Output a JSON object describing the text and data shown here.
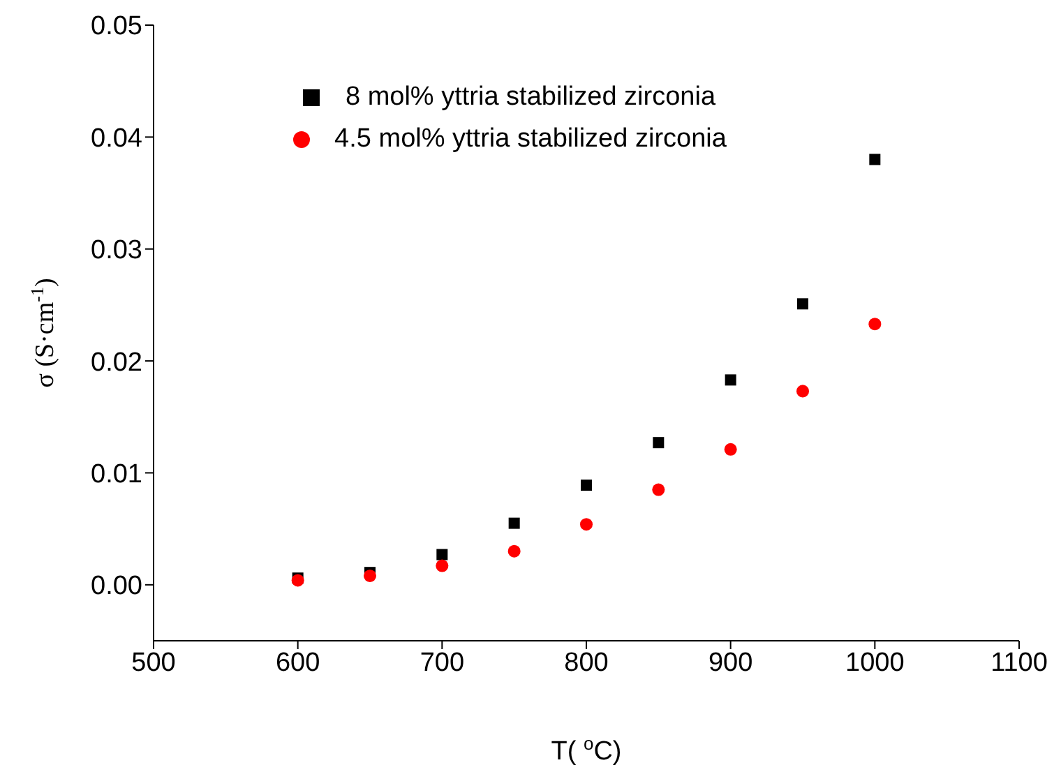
{
  "chart_data": {
    "type": "scatter",
    "xlabel": "T( $^{o}$C)",
    "ylabel": "σ (S·cm$^{-1}$)",
    "xlim": [
      500,
      1100
    ],
    "xticks": [
      500,
      600,
      700,
      800,
      900,
      1000,
      1100
    ],
    "ylim": [
      -0.005,
      0.05
    ],
    "yticks": [
      {
        "value": 0,
        "label": "0.00"
      },
      {
        "value": 0.01,
        "label": "0.01"
      },
      {
        "value": 0.02,
        "label": "0.02"
      },
      {
        "value": 0.03,
        "label": "0.03"
      },
      {
        "value": 0.04,
        "label": "0.04"
      },
      {
        "value": 0.05,
        "label": "0.05"
      }
    ],
    "x": [
      600,
      650,
      700,
      750,
      800,
      850,
      900,
      950,
      1000
    ],
    "legend": "top left",
    "grid": false,
    "series": [
      {
        "name": "8 mol% yttria stabilized zirconia",
        "color": "#000000",
        "marker": "square",
        "values": [
          0.0006,
          0.0011,
          0.0027,
          0.0055,
          0.0089,
          0.0127,
          0.0183,
          0.0251,
          0.038
        ]
      },
      {
        "name": "4.5 mol% yttria stabilized zirconia",
        "color": "#ff0000",
        "marker": "circle",
        "values": [
          0.0004,
          0.0008,
          0.0017,
          0.003,
          0.0054,
          0.0085,
          0.0121,
          0.0173,
          0.0233
        ]
      }
    ]
  }
}
